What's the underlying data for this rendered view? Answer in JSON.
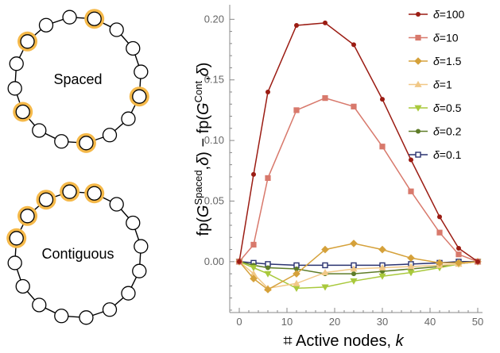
{
  "diagrams": [
    {
      "label": "Spaced",
      "nodes": 16,
      "highlighted": [
        0,
        3,
        6,
        9,
        12
      ]
    },
    {
      "label": "Contiguous",
      "nodes": 16,
      "highlighted": [
        0,
        1,
        2,
        3,
        4
      ]
    }
  ],
  "colors": {
    "highlight": "#f5b94a",
    "axis": "#888888"
  },
  "chart_data": {
    "type": "line",
    "xlabel": "⌗ Active nodes, k",
    "xlabel_parts": {
      "prefix": "⌗ Active nodes, ",
      "var": "k"
    },
    "ylabel_parts": {
      "a": "fp(",
      "G1": "G",
      "sup1": "Spaced",
      "b": ",",
      "d1": "δ",
      "c": ") − fp(",
      "G2": "G",
      "sup2": "Cont",
      "e": ",",
      "d2": "δ",
      "f": ")"
    },
    "xlim": [
      -2,
      51
    ],
    "ylim": [
      -0.042,
      0.212
    ],
    "xticks": [
      0,
      10,
      20,
      30,
      40,
      50
    ],
    "yticks": [
      0.0,
      0.05,
      0.1,
      0.15,
      0.2
    ],
    "xtick_labels": [
      "0",
      "10",
      "20",
      "30",
      "40",
      "50"
    ],
    "ytick_labels": [
      "0.00",
      "0.05",
      "0.10",
      "0.15",
      "0.20"
    ],
    "grid": false,
    "legend_position": "top-right",
    "legend_prefix": "δ=",
    "series": [
      {
        "name": "100",
        "color": "#9b1c13",
        "marker": "circle",
        "x": [
          0,
          3,
          6,
          12,
          18,
          24,
          30,
          36,
          42,
          46,
          50
        ],
        "y": [
          0.0,
          0.072,
          0.14,
          0.195,
          0.197,
          0.179,
          0.134,
          0.084,
          0.037,
          0.011,
          0.0
        ]
      },
      {
        "name": "10",
        "color": "#d8796c",
        "marker": "square",
        "x": [
          0,
          3,
          6,
          12,
          18,
          24,
          30,
          36,
          42,
          46,
          50
        ],
        "y": [
          0.0,
          0.014,
          0.069,
          0.125,
          0.135,
          0.128,
          0.095,
          0.058,
          0.024,
          0.006,
          0.0
        ]
      },
      {
        "name": "1.5",
        "color": "#d5a13a",
        "marker": "diamond",
        "x": [
          0,
          3,
          6,
          12,
          18,
          24,
          30,
          36,
          42,
          46,
          50
        ],
        "y": [
          0.0,
          -0.014,
          -0.023,
          -0.01,
          0.01,
          0.015,
          0.01,
          0.003,
          -0.001,
          -0.001,
          0.0
        ]
      },
      {
        "name": "1",
        "color": "#f1c887",
        "marker": "triangle-up",
        "x": [
          0,
          3,
          6,
          12,
          18,
          24,
          30,
          36,
          42,
          46,
          50
        ],
        "y": [
          0.0,
          -0.01,
          -0.022,
          -0.018,
          -0.009,
          -0.006,
          -0.005,
          -0.004,
          -0.003,
          -0.002,
          0.0
        ]
      },
      {
        "name": "0.5",
        "color": "#a9c93c",
        "marker": "triangle-down",
        "x": [
          0,
          3,
          6,
          12,
          18,
          24,
          30,
          36,
          42,
          46,
          50
        ],
        "y": [
          0.0,
          -0.005,
          -0.01,
          -0.022,
          -0.021,
          -0.016,
          -0.012,
          -0.009,
          -0.005,
          -0.002,
          0.0
        ]
      },
      {
        "name": "0.2",
        "color": "#5e7c28",
        "marker": "circle",
        "x": [
          0,
          3,
          6,
          12,
          18,
          24,
          30,
          36,
          42,
          46,
          50
        ],
        "y": [
          0.0,
          -0.003,
          -0.005,
          -0.006,
          -0.01,
          -0.01,
          -0.008,
          -0.006,
          -0.004,
          -0.002,
          0.0
        ]
      },
      {
        "name": "0.1",
        "color": "#2a3270",
        "marker": "square-open",
        "x": [
          0,
          3,
          6,
          12,
          18,
          24,
          30,
          36,
          42,
          46,
          50
        ],
        "y": [
          0.0,
          -0.001,
          -0.002,
          -0.003,
          -0.003,
          -0.003,
          -0.003,
          -0.002,
          -0.001,
          0.0,
          0.0
        ]
      }
    ]
  }
}
